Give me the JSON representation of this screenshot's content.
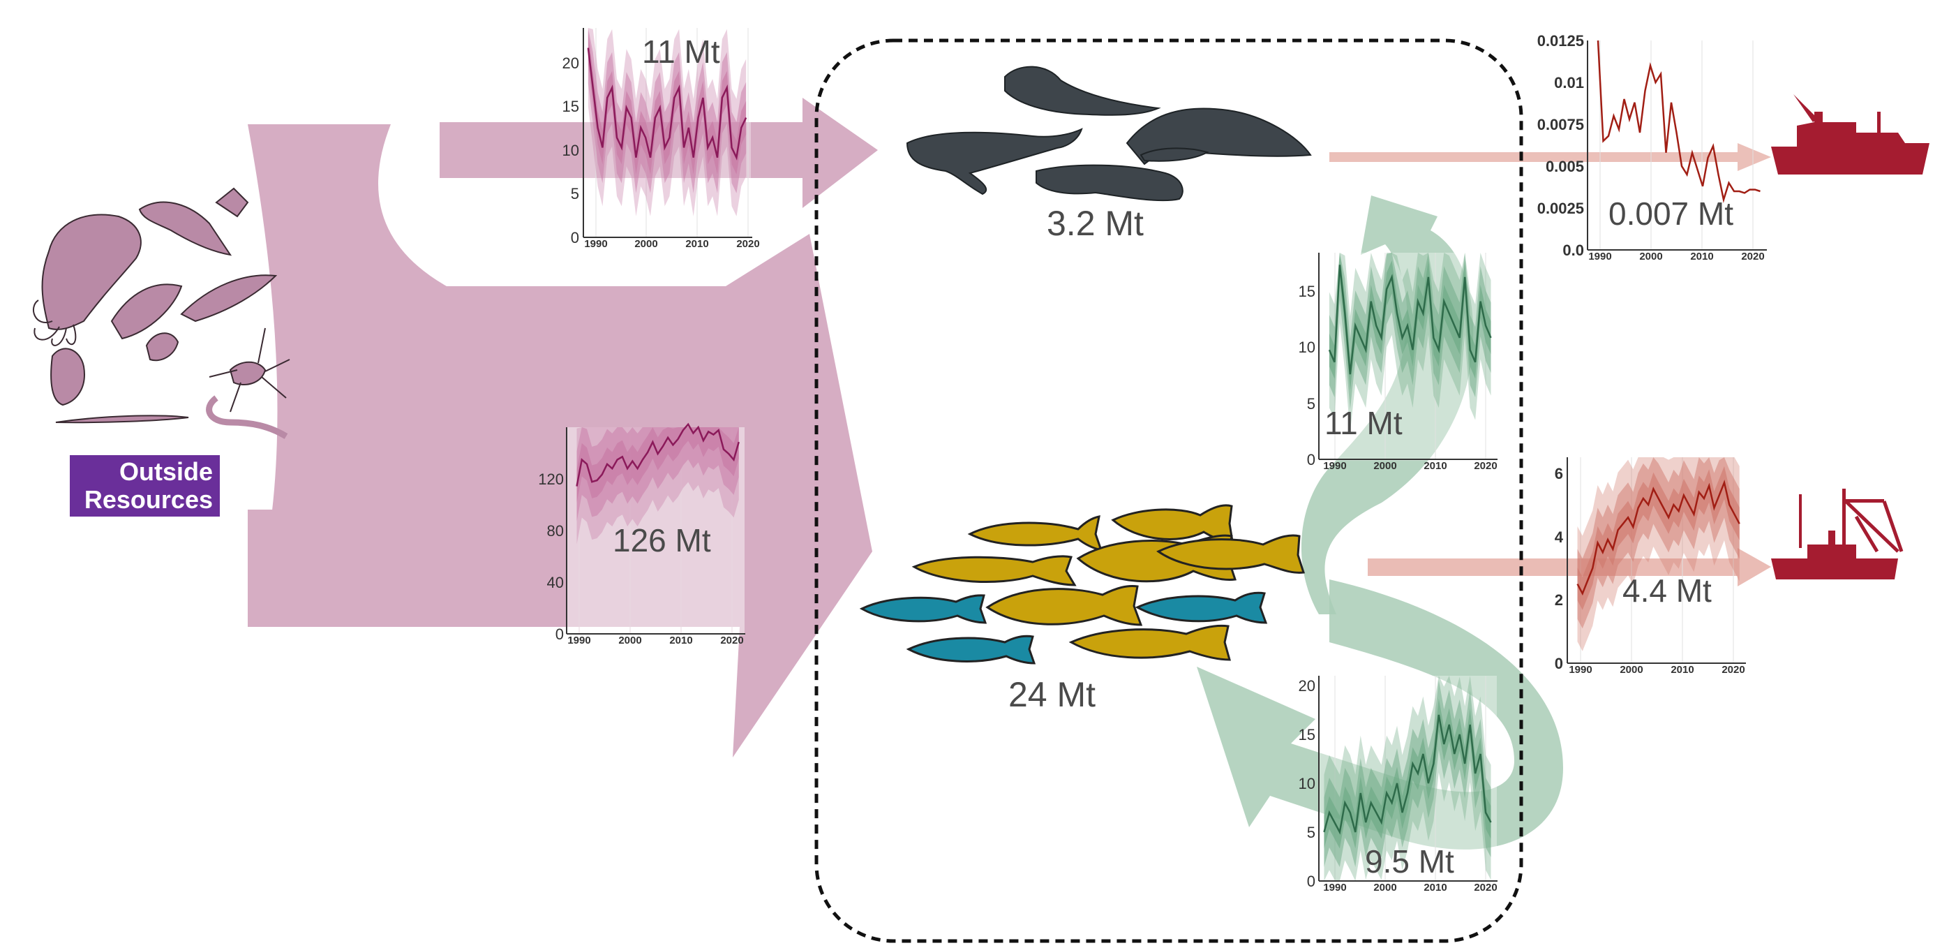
{
  "outside_label": {
    "line1": "Outside",
    "line2": "Resources"
  },
  "colors": {
    "pink_flow": "#d6adc3",
    "pink_line": "#8b1a5a",
    "green_flow": "#a9ccb6",
    "green_line": "#2e6b4a",
    "red_flow": "#e8b5ad",
    "red_line": "#a11e14",
    "vessel": "#a51c30",
    "mammal": "#3e454b",
    "fish_yellow": "#c9a20c",
    "fish_blue": "#1a8aa3",
    "zooplankton": "#b98aa6",
    "label_box": "#6a2f9a"
  },
  "nodes": {
    "mammals_value": "3.2 Mt",
    "fish_value": "24 Mt"
  },
  "charts": {
    "zoo_to_mammals": {
      "value": "11 Mt",
      "y_ticks": [
        "0",
        "5",
        "10",
        "15",
        "20"
      ],
      "x_ticks": [
        "1990",
        "2000",
        "2010",
        "2020"
      ]
    },
    "zoo_to_fish": {
      "value": "126 Mt",
      "y_ticks": [
        "0",
        "40",
        "80",
        "120"
      ],
      "x_ticks": [
        "1990",
        "2000",
        "2010",
        "2020"
      ]
    },
    "fish_to_mammals": {
      "value": "11 Mt",
      "y_ticks": [
        "0",
        "5",
        "10",
        "15"
      ],
      "x_ticks": [
        "1990",
        "2000",
        "2010",
        "2020"
      ]
    },
    "fish_to_fish": {
      "value": "9.5 Mt",
      "y_ticks": [
        "0",
        "5",
        "10",
        "15",
        "20"
      ],
      "x_ticks": [
        "1990",
        "2000",
        "2010",
        "2020"
      ]
    },
    "mammal_catch": {
      "value": "0.007 Mt",
      "y_ticks": [
        "0.0",
        "0.0025",
        "0.005",
        "0.0075",
        "0.01",
        "0.0125"
      ],
      "x_ticks": [
        "1990",
        "2000",
        "2010",
        "2020"
      ]
    },
    "fish_catch": {
      "value": "4.4 Mt",
      "y_ticks": [
        "0",
        "2",
        "4",
        "6"
      ],
      "x_ticks": [
        "1990",
        "2000",
        "2010",
        "2020"
      ]
    }
  },
  "chart_data": [
    {
      "type": "area",
      "title": "11 Mt",
      "ylim": [
        0,
        21
      ],
      "x": [
        1987,
        1988,
        1989,
        1990,
        1991,
        1992,
        1993,
        1994,
        1995,
        1996,
        1997,
        1998,
        1999,
        2000,
        2001,
        2002,
        2003,
        2004,
        2005,
        2006,
        2007,
        2008,
        2009,
        2010,
        2011,
        2012,
        2013,
        2014,
        2015,
        2016,
        2017,
        2018,
        2019,
        2020
      ],
      "series": [
        {
          "values": [
            19,
            15,
            11,
            9,
            14,
            15,
            10,
            9,
            13,
            12,
            8,
            11,
            10,
            8,
            12,
            13,
            9,
            10,
            14,
            15,
            9,
            11,
            8,
            12,
            14,
            9,
            10,
            8,
            14,
            15,
            9,
            8,
            11,
            12
          ]
        }
      ]
    },
    {
      "type": "area",
      "title": "126 Mt",
      "ylim": [
        0,
        140
      ],
      "x": [
        1988,
        1989,
        1990,
        1991,
        1992,
        1993,
        1994,
        1995,
        1996,
        1997,
        1998,
        1999,
        2000,
        2001,
        2002,
        2003,
        2004,
        2005,
        2006,
        2007,
        2008,
        2009,
        2010,
        2011,
        2012,
        2013,
        2014,
        2015,
        2016,
        2017,
        2018,
        2019,
        2020
      ],
      "series": [
        {
          "values": [
            100,
            118,
            115,
            103,
            104,
            108,
            115,
            112,
            118,
            120,
            112,
            117,
            112,
            118,
            123,
            130,
            122,
            127,
            133,
            128,
            132,
            138,
            142,
            136,
            140,
            131,
            137,
            135,
            138,
            125,
            122,
            118,
            130
          ]
        }
      ]
    },
    {
      "type": "area",
      "title": "11 Mt",
      "ylim": [
        0,
        17
      ],
      "x": [
        1989,
        1990,
        1991,
        1992,
        1993,
        1994,
        1995,
        1996,
        1997,
        1998,
        1999,
        2000,
        2001,
        2002,
        2003,
        2004,
        2005,
        2006,
        2007,
        2008,
        2009,
        2010,
        2011,
        2012,
        2013,
        2014,
        2015,
        2016,
        2017,
        2018,
        2019,
        2020
      ],
      "series": [
        {
          "values": [
            9,
            8,
            16,
            12,
            7,
            11,
            10,
            9,
            13,
            11,
            10,
            14,
            15,
            12,
            10,
            11,
            9,
            13,
            12,
            15,
            10,
            9,
            13,
            12,
            11,
            10,
            15,
            9,
            8,
            13,
            11,
            10
          ]
        }
      ]
    },
    {
      "type": "area",
      "title": "9.5 Mt",
      "ylim": [
        0,
        21
      ],
      "x": [
        1988,
        1989,
        1990,
        1991,
        1992,
        1993,
        1994,
        1995,
        1996,
        1997,
        1998,
        1999,
        2000,
        2001,
        2002,
        2003,
        2004,
        2005,
        2006,
        2007,
        2008,
        2009,
        2010,
        2011,
        2012,
        2013,
        2014,
        2015,
        2016,
        2017,
        2018,
        2019,
        2020
      ],
      "series": [
        {
          "values": [
            5,
            7,
            6,
            5,
            8,
            7,
            5,
            9,
            6,
            8,
            7,
            6,
            9,
            8,
            10,
            7,
            9,
            12,
            11,
            13,
            10,
            12,
            17,
            14,
            16,
            13,
            15,
            12,
            16,
            11,
            13,
            7,
            6
          ]
        }
      ]
    },
    {
      "type": "line",
      "title": "0.007 Mt",
      "ylim": [
        0,
        0.0125
      ],
      "x": [
        1989,
        1990,
        1991,
        1992,
        1993,
        1994,
        1995,
        1996,
        1997,
        1998,
        1999,
        2000,
        2001,
        2002,
        2003,
        2004,
        2005,
        2006,
        2007,
        2008,
        2009,
        2010,
        2011,
        2012,
        2013,
        2014,
        2015,
        2016,
        2017,
        2018,
        2019,
        2020
      ],
      "series": [
        {
          "values": [
            0.0125,
            0.0065,
            0.0068,
            0.008,
            0.0072,
            0.009,
            0.0078,
            0.0088,
            0.007,
            0.0095,
            0.011,
            0.01,
            0.0105,
            0.0058,
            0.0088,
            0.007,
            0.005,
            0.0045,
            0.0058,
            0.0048,
            0.0038,
            0.0055,
            0.0062,
            0.0045,
            0.003,
            0.004,
            0.0035,
            0.0035,
            0.0034,
            0.0036,
            0.0036,
            0.0035
          ]
        }
      ]
    },
    {
      "type": "area",
      "title": "4.4 Mt",
      "ylim": [
        0,
        6.5
      ],
      "x": [
        1988,
        1989,
        1990,
        1991,
        1992,
        1993,
        1994,
        1995,
        1996,
        1997,
        1998,
        1999,
        2000,
        2001,
        2002,
        2003,
        2004,
        2005,
        2006,
        2007,
        2008,
        2009,
        2010,
        2011,
        2012,
        2013,
        2014,
        2015,
        2016,
        2017,
        2018,
        2019,
        2020
      ],
      "series": [
        {
          "values": [
            2.5,
            2.2,
            2.6,
            3.0,
            3.8,
            3.5,
            3.9,
            3.6,
            4.2,
            4.4,
            4.6,
            4.3,
            4.9,
            5.2,
            5.0,
            5.5,
            5.2,
            4.9,
            4.6,
            5.0,
            4.8,
            5.3,
            5.0,
            4.7,
            5.4,
            5.2,
            5.6,
            4.9,
            5.3,
            5.7,
            5.0,
            4.7,
            4.4
          ]
        }
      ]
    }
  ]
}
